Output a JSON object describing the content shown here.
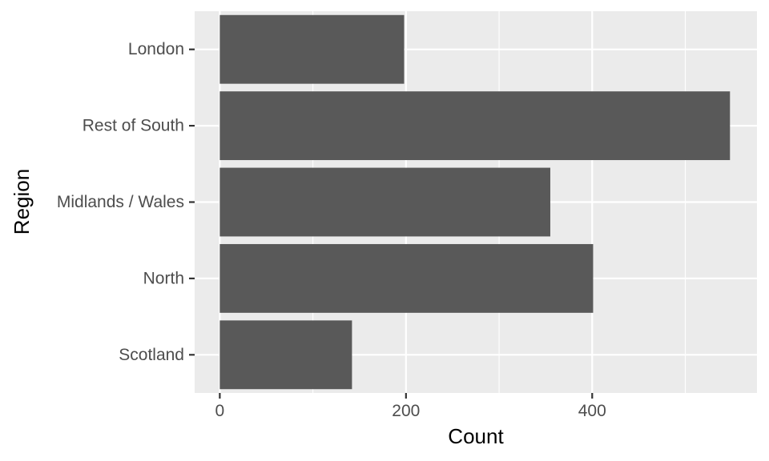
{
  "chart_data": {
    "type": "bar",
    "orientation": "horizontal",
    "categories": [
      "London",
      "Rest of South",
      "Midlands / Wales",
      "North",
      "Scotland"
    ],
    "values": [
      198,
      548,
      355,
      401,
      142
    ],
    "xlabel": "Count",
    "ylabel": "Region",
    "xlim": [
      -27,
      577
    ],
    "x_ticks": [
      0,
      200,
      400
    ],
    "x_minor_ticks": [
      100,
      300,
      500
    ],
    "grid": true,
    "legend": "none",
    "colors": {
      "panel": "#ebebeb",
      "grid": "#ffffff",
      "bar": "#595959",
      "tick_text": "#4d4d4d",
      "tick_mark": "#333333"
    }
  }
}
